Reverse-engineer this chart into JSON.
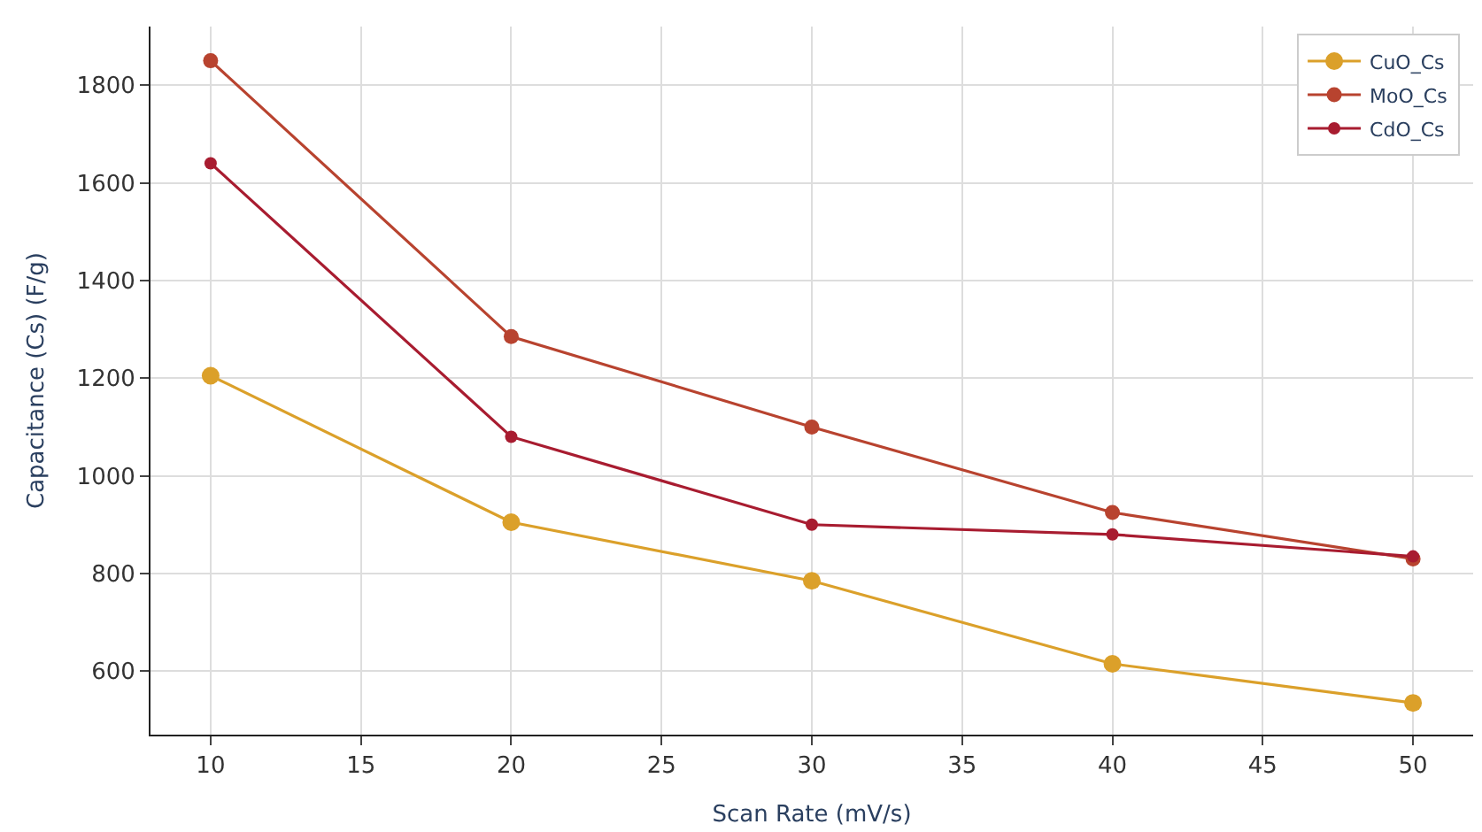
{
  "chart_data": {
    "type": "line",
    "xlabel": "Scan Rate (mV/s)",
    "ylabel": "Capacitance (Cs) (F/g)",
    "x": [
      10,
      20,
      30,
      40,
      50
    ],
    "series": [
      {
        "name": "CuO_Cs",
        "color": "#dba02a",
        "values": [
          1205,
          905,
          785,
          615,
          535
        ]
      },
      {
        "name": "MoO_Cs",
        "color": "#b8432f",
        "values": [
          1850,
          1285,
          1100,
          925,
          830
        ]
      },
      {
        "name": "CdO_Cs",
        "color": "#a81c30",
        "values": [
          1640,
          1080,
          900,
          880,
          835
        ]
      }
    ],
    "xlim": [
      8,
      52
    ],
    "xticks": [
      10,
      15,
      20,
      25,
      30,
      35,
      40,
      45,
      50
    ],
    "ylim": [
      470,
      1920
    ],
    "yticks": [
      600,
      800,
      1000,
      1200,
      1400,
      1600,
      1800
    ],
    "grid": true,
    "legend": "top right",
    "marker": "circle",
    "line_style": "solid"
  }
}
